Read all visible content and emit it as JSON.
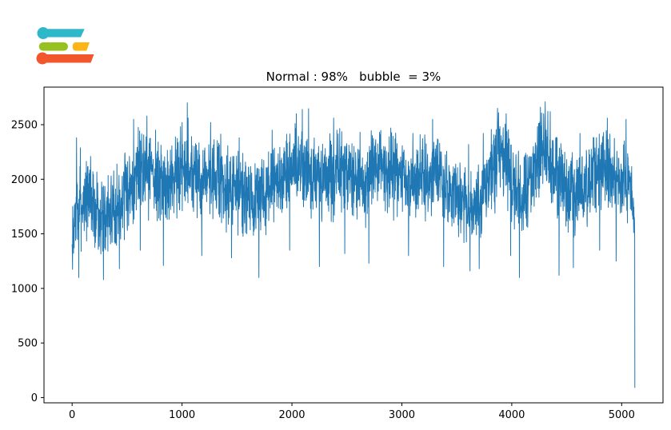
{
  "page": {
    "background": "#ffffff"
  },
  "logo": {
    "colors": {
      "teal": "#2fb8c9",
      "green": "#96c11f",
      "yellow": "#fdb515",
      "orange": "#f1562d"
    }
  },
  "chart_data": {
    "type": "line",
    "title": "Normal : 98%   bubble  = 3%",
    "xlabel": "",
    "ylabel": "",
    "x_ticks": [
      0,
      1000,
      2000,
      3000,
      4000,
      5000
    ],
    "y_ticks": [
      0,
      500,
      1000,
      1500,
      2000,
      2500
    ],
    "xlim": [
      -256,
      5376
    ],
    "ylim": [
      -48,
      2844
    ],
    "x_range": [
      0,
      5120
    ],
    "grid": false,
    "legend": null,
    "line_color": "#1f77b4",
    "line_width": 1,
    "axis_color": "#000000",
    "tick_font_size": 13,
    "n_points": 5120,
    "render_points": 2800,
    "seed": 7,
    "baseline": [
      [
        0,
        1350
      ],
      [
        30,
        1650
      ],
      [
        80,
        1780
      ],
      [
        150,
        1820
      ],
      [
        220,
        1720
      ],
      [
        280,
        1620
      ],
      [
        360,
        1680
      ],
      [
        440,
        1780
      ],
      [
        520,
        1950
      ],
      [
        580,
        2080
      ],
      [
        650,
        2160
      ],
      [
        720,
        2060
      ],
      [
        800,
        1940
      ],
      [
        880,
        1980
      ],
      [
        960,
        2060
      ],
      [
        1050,
        2120
      ],
      [
        1130,
        2000
      ],
      [
        1220,
        1990
      ],
      [
        1300,
        2010
      ],
      [
        1400,
        1930
      ],
      [
        1500,
        1880
      ],
      [
        1600,
        1840
      ],
      [
        1700,
        1800
      ],
      [
        1800,
        1900
      ],
      [
        1900,
        2000
      ],
      [
        2000,
        2120
      ],
      [
        2080,
        2150
      ],
      [
        2170,
        2010
      ],
      [
        2260,
        1950
      ],
      [
        2350,
        2010
      ],
      [
        2430,
        2070
      ],
      [
        2520,
        1990
      ],
      [
        2610,
        1950
      ],
      [
        2700,
        2030
      ],
      [
        2800,
        2090
      ],
      [
        2900,
        2060
      ],
      [
        3000,
        1980
      ],
      [
        3080,
        1950
      ],
      [
        3180,
        2030
      ],
      [
        3280,
        2090
      ],
      [
        3380,
        1990
      ],
      [
        3480,
        1850
      ],
      [
        3570,
        1760
      ],
      [
        3650,
        1720
      ],
      [
        3720,
        1800
      ],
      [
        3800,
        2040
      ],
      [
        3880,
        2210
      ],
      [
        3950,
        2160
      ],
      [
        4030,
        1930
      ],
      [
        4100,
        1840
      ],
      [
        4180,
        2030
      ],
      [
        4260,
        2240
      ],
      [
        4320,
        2280
      ],
      [
        4390,
        2060
      ],
      [
        4470,
        1900
      ],
      [
        4550,
        1880
      ],
      [
        4640,
        1940
      ],
      [
        4720,
        2020
      ],
      [
        4800,
        2090
      ],
      [
        4880,
        2060
      ],
      [
        4960,
        2010
      ],
      [
        5030,
        2000
      ],
      [
        5080,
        1900
      ],
      [
        5105,
        1700
      ],
      [
        5118,
        1550
      ],
      [
        5120,
        90
      ]
    ],
    "amplitude": [
      [
        0,
        240
      ],
      [
        150,
        290
      ],
      [
        400,
        280
      ],
      [
        700,
        300
      ],
      [
        1000,
        290
      ],
      [
        1300,
        285
      ],
      [
        1600,
        295
      ],
      [
        1900,
        290
      ],
      [
        2100,
        300
      ],
      [
        2400,
        290
      ],
      [
        2700,
        285
      ],
      [
        3000,
        285
      ],
      [
        3300,
        290
      ],
      [
        3600,
        275
      ],
      [
        3900,
        300
      ],
      [
        4150,
        300
      ],
      [
        4300,
        310
      ],
      [
        4600,
        290
      ],
      [
        4900,
        285
      ],
      [
        5050,
        275
      ],
      [
        5100,
        200
      ],
      [
        5118,
        60
      ],
      [
        5120,
        5
      ]
    ],
    "peaks": [
      [
        40,
        2380
      ],
      [
        560,
        2550
      ],
      [
        620,
        2640
      ],
      [
        680,
        2580
      ],
      [
        760,
        2450
      ],
      [
        1000,
        2520
      ],
      [
        1055,
        2560
      ],
      [
        1260,
        2520
      ],
      [
        1520,
        2380
      ],
      [
        1820,
        2450
      ],
      [
        2040,
        2600
      ],
      [
        2095,
        2640
      ],
      [
        2380,
        2560
      ],
      [
        2620,
        2430
      ],
      [
        2900,
        2470
      ],
      [
        3100,
        2420
      ],
      [
        3280,
        2550
      ],
      [
        3740,
        2420
      ],
      [
        3870,
        2650
      ],
      [
        3950,
        2600
      ],
      [
        4260,
        2660
      ],
      [
        4305,
        2710
      ],
      [
        4350,
        2620
      ],
      [
        4620,
        2420
      ],
      [
        4870,
        2560
      ],
      [
        5040,
        2550
      ]
    ],
    "dips": [
      [
        60,
        1100
      ],
      [
        285,
        1080
      ],
      [
        430,
        1180
      ],
      [
        620,
        1350
      ],
      [
        830,
        1210
      ],
      [
        1180,
        1300
      ],
      [
        1450,
        1280
      ],
      [
        1700,
        1100
      ],
      [
        1980,
        1350
      ],
      [
        2250,
        1200
      ],
      [
        2480,
        1320
      ],
      [
        2700,
        1230
      ],
      [
        3060,
        1300
      ],
      [
        3380,
        1200
      ],
      [
        3620,
        1160
      ],
      [
        3705,
        1180
      ],
      [
        3990,
        1300
      ],
      [
        4070,
        1100
      ],
      [
        4430,
        1120
      ],
      [
        4560,
        1190
      ],
      [
        4800,
        1350
      ],
      [
        4950,
        1250
      ]
    ],
    "end_value": 90
  }
}
